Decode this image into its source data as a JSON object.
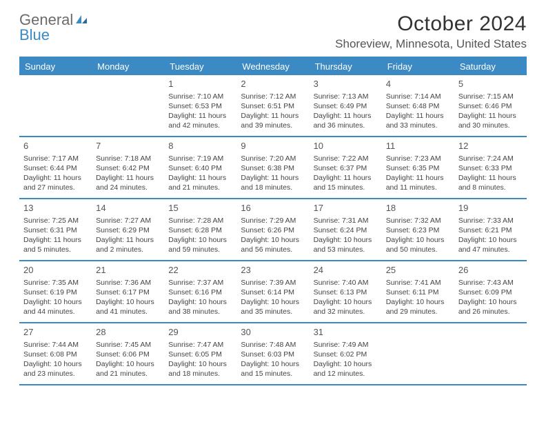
{
  "brand": {
    "general": "General",
    "blue": "Blue",
    "accent_color": "#3b8ac4",
    "gray_color": "#6b6b6b"
  },
  "title": "October 2024",
  "location": "Shoreview, Minnesota, United States",
  "dow": [
    "Sunday",
    "Monday",
    "Tuesday",
    "Wednesday",
    "Thursday",
    "Friday",
    "Saturday"
  ],
  "weeks": [
    [
      {},
      {},
      {
        "n": "1",
        "sr": "7:10 AM",
        "ss": "6:53 PM",
        "dl": "11 hours and 42 minutes."
      },
      {
        "n": "2",
        "sr": "7:12 AM",
        "ss": "6:51 PM",
        "dl": "11 hours and 39 minutes."
      },
      {
        "n": "3",
        "sr": "7:13 AM",
        "ss": "6:49 PM",
        "dl": "11 hours and 36 minutes."
      },
      {
        "n": "4",
        "sr": "7:14 AM",
        "ss": "6:48 PM",
        "dl": "11 hours and 33 minutes."
      },
      {
        "n": "5",
        "sr": "7:15 AM",
        "ss": "6:46 PM",
        "dl": "11 hours and 30 minutes."
      }
    ],
    [
      {
        "n": "6",
        "sr": "7:17 AM",
        "ss": "6:44 PM",
        "dl": "11 hours and 27 minutes."
      },
      {
        "n": "7",
        "sr": "7:18 AM",
        "ss": "6:42 PM",
        "dl": "11 hours and 24 minutes."
      },
      {
        "n": "8",
        "sr": "7:19 AM",
        "ss": "6:40 PM",
        "dl": "11 hours and 21 minutes."
      },
      {
        "n": "9",
        "sr": "7:20 AM",
        "ss": "6:38 PM",
        "dl": "11 hours and 18 minutes."
      },
      {
        "n": "10",
        "sr": "7:22 AM",
        "ss": "6:37 PM",
        "dl": "11 hours and 15 minutes."
      },
      {
        "n": "11",
        "sr": "7:23 AM",
        "ss": "6:35 PM",
        "dl": "11 hours and 11 minutes."
      },
      {
        "n": "12",
        "sr": "7:24 AM",
        "ss": "6:33 PM",
        "dl": "11 hours and 8 minutes."
      }
    ],
    [
      {
        "n": "13",
        "sr": "7:25 AM",
        "ss": "6:31 PM",
        "dl": "11 hours and 5 minutes."
      },
      {
        "n": "14",
        "sr": "7:27 AM",
        "ss": "6:29 PM",
        "dl": "11 hours and 2 minutes."
      },
      {
        "n": "15",
        "sr": "7:28 AM",
        "ss": "6:28 PM",
        "dl": "10 hours and 59 minutes."
      },
      {
        "n": "16",
        "sr": "7:29 AM",
        "ss": "6:26 PM",
        "dl": "10 hours and 56 minutes."
      },
      {
        "n": "17",
        "sr": "7:31 AM",
        "ss": "6:24 PM",
        "dl": "10 hours and 53 minutes."
      },
      {
        "n": "18",
        "sr": "7:32 AM",
        "ss": "6:23 PM",
        "dl": "10 hours and 50 minutes."
      },
      {
        "n": "19",
        "sr": "7:33 AM",
        "ss": "6:21 PM",
        "dl": "10 hours and 47 minutes."
      }
    ],
    [
      {
        "n": "20",
        "sr": "7:35 AM",
        "ss": "6:19 PM",
        "dl": "10 hours and 44 minutes."
      },
      {
        "n": "21",
        "sr": "7:36 AM",
        "ss": "6:17 PM",
        "dl": "10 hours and 41 minutes."
      },
      {
        "n": "22",
        "sr": "7:37 AM",
        "ss": "6:16 PM",
        "dl": "10 hours and 38 minutes."
      },
      {
        "n": "23",
        "sr": "7:39 AM",
        "ss": "6:14 PM",
        "dl": "10 hours and 35 minutes."
      },
      {
        "n": "24",
        "sr": "7:40 AM",
        "ss": "6:13 PM",
        "dl": "10 hours and 32 minutes."
      },
      {
        "n": "25",
        "sr": "7:41 AM",
        "ss": "6:11 PM",
        "dl": "10 hours and 29 minutes."
      },
      {
        "n": "26",
        "sr": "7:43 AM",
        "ss": "6:09 PM",
        "dl": "10 hours and 26 minutes."
      }
    ],
    [
      {
        "n": "27",
        "sr": "7:44 AM",
        "ss": "6:08 PM",
        "dl": "10 hours and 23 minutes."
      },
      {
        "n": "28",
        "sr": "7:45 AM",
        "ss": "6:06 PM",
        "dl": "10 hours and 21 minutes."
      },
      {
        "n": "29",
        "sr": "7:47 AM",
        "ss": "6:05 PM",
        "dl": "10 hours and 18 minutes."
      },
      {
        "n": "30",
        "sr": "7:48 AM",
        "ss": "6:03 PM",
        "dl": "10 hours and 15 minutes."
      },
      {
        "n": "31",
        "sr": "7:49 AM",
        "ss": "6:02 PM",
        "dl": "10 hours and 12 minutes."
      },
      {},
      {}
    ]
  ],
  "labels": {
    "sunrise": "Sunrise: ",
    "sunset": "Sunset: ",
    "daylight": "Daylight: "
  }
}
